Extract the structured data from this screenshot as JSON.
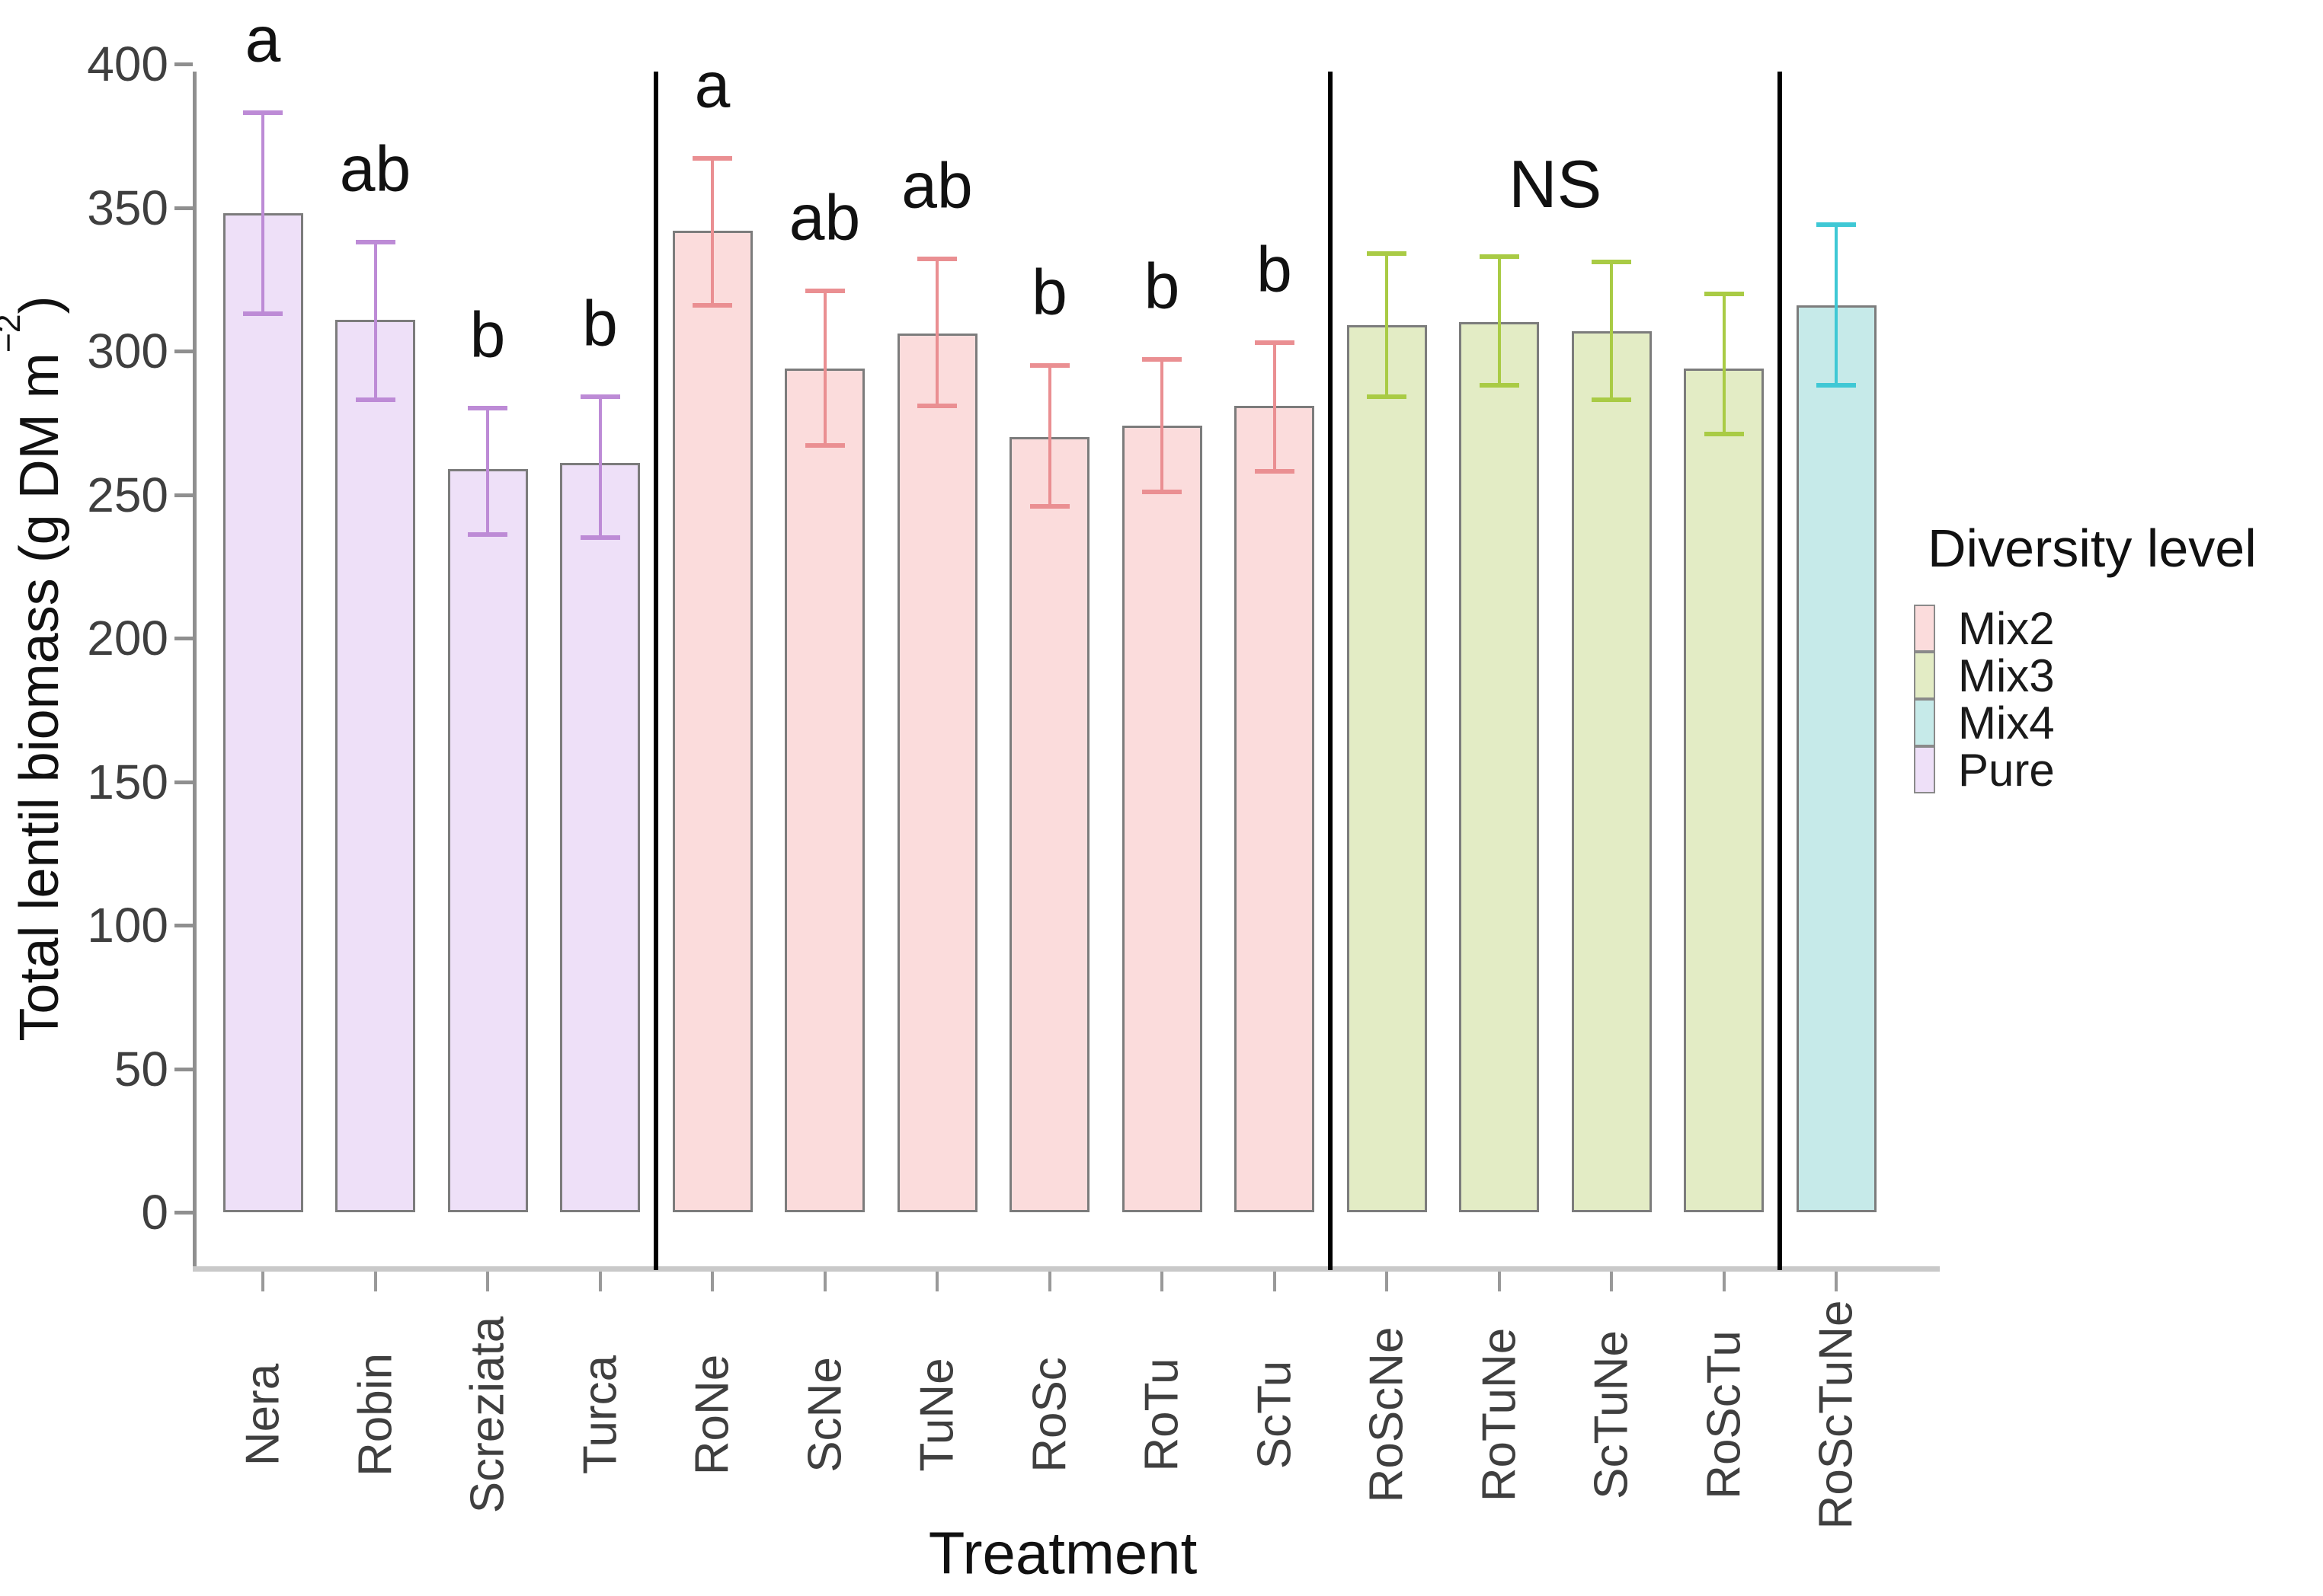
{
  "chart_data": {
    "type": "bar",
    "title": "",
    "xlabel": "Treatment",
    "ylabel": "Total lentil biomass (g DM m⁻²)",
    "ylabel_parts": {
      "prefix": "Total lentil biomass (g DM m",
      "superscript": "−2",
      "suffix": ")"
    },
    "ylim": [
      0,
      400
    ],
    "yticks": [
      0,
      50,
      100,
      150,
      200,
      250,
      300,
      350,
      400
    ],
    "grid": false,
    "bar_outline_color": "#7c7c7c",
    "categories": [
      "Nera",
      "Robin",
      "Screziata",
      "Turca",
      "RoNe",
      "ScNe",
      "TuNe",
      "RoSc",
      "RoTu",
      "ScTu",
      "RoScNe",
      "RoTuNe",
      "ScTuNe",
      "RoScTu",
      "RoScTuNe"
    ],
    "bars": [
      {
        "label": "Nera",
        "group": "Pure",
        "value": 348,
        "err_low": 313,
        "err_high": 383,
        "sig": "a"
      },
      {
        "label": "Robin",
        "group": "Pure",
        "value": 311,
        "err_low": 283,
        "err_high": 338,
        "sig": "ab"
      },
      {
        "label": "Screziata",
        "group": "Pure",
        "value": 259,
        "err_low": 236,
        "err_high": 280,
        "sig": "b"
      },
      {
        "label": "Turca",
        "group": "Pure",
        "value": 261,
        "err_low": 235,
        "err_high": 284,
        "sig": "b"
      },
      {
        "label": "RoNe",
        "group": "Mix2",
        "value": 342,
        "err_low": 316,
        "err_high": 367,
        "sig": "a"
      },
      {
        "label": "ScNe",
        "group": "Mix2",
        "value": 294,
        "err_low": 267,
        "err_high": 321,
        "sig": "ab"
      },
      {
        "label": "TuNe",
        "group": "Mix2",
        "value": 306,
        "err_low": 281,
        "err_high": 332,
        "sig": "ab"
      },
      {
        "label": "RoSc",
        "group": "Mix2",
        "value": 270,
        "err_low": 246,
        "err_high": 295,
        "sig": "b"
      },
      {
        "label": "RoTu",
        "group": "Mix2",
        "value": 274,
        "err_low": 251,
        "err_high": 297,
        "sig": "b"
      },
      {
        "label": "ScTu",
        "group": "Mix2",
        "value": 281,
        "err_low": 258,
        "err_high": 303,
        "sig": "b"
      },
      {
        "label": "RoScNe",
        "group": "Mix3",
        "value": 309,
        "err_low": 284,
        "err_high": 334,
        "sig": null
      },
      {
        "label": "RoTuNe",
        "group": "Mix3",
        "value": 310,
        "err_low": 288,
        "err_high": 333,
        "sig": null
      },
      {
        "label": "ScTuNe",
        "group": "Mix3",
        "value": 307,
        "err_low": 283,
        "err_high": 331,
        "sig": null
      },
      {
        "label": "RoScTu",
        "group": "Mix3",
        "value": 294,
        "err_low": 271,
        "err_high": 320,
        "sig": null
      },
      {
        "label": "RoScTuNe",
        "group": "Mix4",
        "value": 316,
        "err_low": 288,
        "err_high": 344,
        "sig": null
      }
    ],
    "group_styles": {
      "Pure": {
        "fill": "#eee0f8",
        "error_color": "#bd8bd6"
      },
      "Mix2": {
        "fill": "#fbdcdc",
        "error_color": "#ea8f92"
      },
      "Mix3": {
        "fill": "#e3ecc5",
        "error_color": "#a9cb45"
      },
      "Mix4": {
        "fill": "#c6eae9",
        "error_color": "#3fc8d5"
      }
    },
    "annotations": [
      {
        "text": "NS",
        "over_group": "Mix3"
      }
    ],
    "separators_after": [
      "Turca",
      "ScTu",
      "RoScTu"
    ],
    "legend": {
      "title": "Diversity level",
      "position": "right",
      "entries": [
        {
          "label": "Mix2",
          "color": "#fbdcdc"
        },
        {
          "label": "Mix3",
          "color": "#e3ecc5"
        },
        {
          "label": "Mix4",
          "color": "#c6eae9"
        },
        {
          "label": "Pure",
          "color": "#eee0f8"
        }
      ]
    }
  }
}
